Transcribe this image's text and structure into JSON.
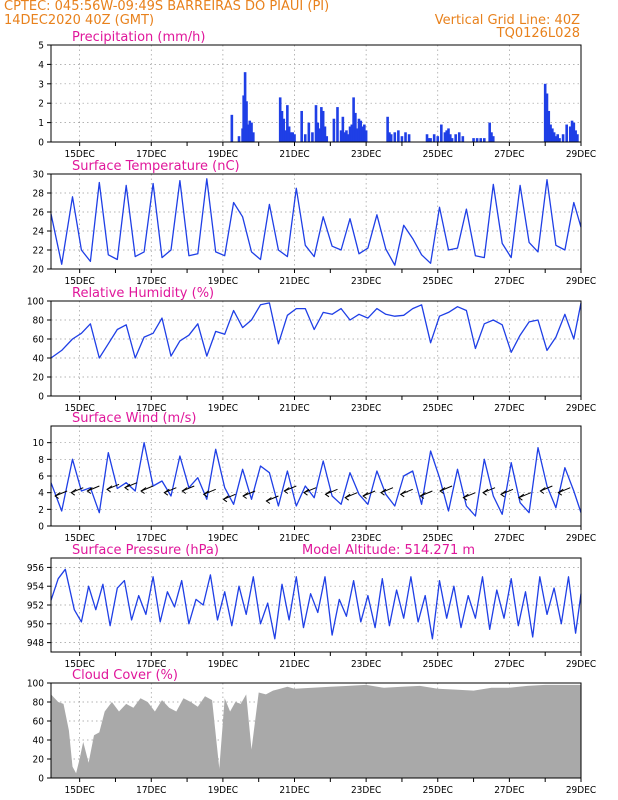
{
  "header": {
    "line1": "CPTEC:   045:56W-09:49S  BARREIRAS DO PIAUI (PI)",
    "line2": "14DEC2020 40Z (GMT)",
    "grid_note": "Vertical Grid Line: 40Z",
    "product_code": "TQ0126L028"
  },
  "colors": {
    "header": "#e8811c",
    "panel_title": "#e0179b",
    "series": "#1f3fe6",
    "cloud": "#a9a9a9",
    "wind_arrow": "#000000"
  },
  "chart_data": [
    {
      "id": "precip",
      "type": "bar",
      "title": "Precipitation (mm/h)",
      "ylim": [
        0,
        5
      ],
      "yticks": [
        0,
        1,
        2,
        3,
        4,
        5
      ],
      "xtick_labels": [
        "15DEC",
        "17DEC",
        "19DEC",
        "21DEC",
        "23DEC",
        "25DEC",
        "27DEC",
        "29DEC"
      ],
      "xrange_days": [
        14.2,
        29.0
      ],
      "x": [
        19.25,
        19.45,
        19.55,
        19.58,
        19.62,
        19.66,
        19.7,
        19.75,
        19.8,
        19.85,
        20.6,
        20.65,
        20.7,
        20.75,
        20.8,
        20.85,
        20.9,
        20.95,
        21.0,
        21.2,
        21.3,
        21.4,
        21.5,
        21.6,
        21.65,
        21.7,
        21.75,
        21.8,
        21.85,
        21.9,
        22.1,
        22.2,
        22.3,
        22.35,
        22.4,
        22.45,
        22.5,
        22.55,
        22.6,
        22.65,
        22.7,
        22.75,
        22.8,
        22.85,
        22.9,
        22.95,
        23.0,
        23.6,
        23.65,
        23.7,
        23.8,
        23.9,
        24.0,
        24.1,
        24.2,
        24.7,
        24.75,
        24.8,
        24.9,
        25.0,
        25.1,
        25.2,
        25.25,
        25.3,
        25.35,
        25.4,
        25.5,
        25.6,
        25.7,
        26.0,
        26.1,
        26.2,
        26.3,
        26.45,
        26.5,
        26.55,
        28.0,
        28.05,
        28.1,
        28.15,
        28.2,
        28.25,
        28.3,
        28.35,
        28.4,
        28.5,
        28.6,
        28.7,
        28.75,
        28.8,
        28.85,
        28.9
      ],
      "values": [
        1.4,
        0.3,
        0.7,
        2.4,
        3.6,
        2.1,
        0.9,
        1.1,
        1.0,
        0.5,
        2.3,
        1.6,
        1.2,
        0.6,
        1.9,
        0.8,
        0.5,
        0.5,
        0.4,
        1.6,
        0.4,
        1.0,
        0.5,
        1.9,
        1.0,
        0.7,
        1.8,
        1.6,
        0.8,
        0.3,
        1.2,
        1.8,
        0.6,
        1.3,
        0.5,
        0.6,
        0.4,
        0.8,
        0.9,
        2.3,
        1.5,
        0.7,
        1.2,
        1.1,
        0.8,
        0.9,
        0.6,
        1.3,
        0.5,
        0.4,
        0.5,
        0.6,
        0.3,
        0.5,
        0.4,
        0.4,
        0.2,
        0.2,
        0.4,
        0.3,
        0.9,
        0.5,
        0.6,
        0.7,
        0.4,
        0.2,
        0.4,
        0.5,
        0.3,
        0.2,
        0.2,
        0.2,
        0.2,
        1.0,
        0.5,
        0.3,
        3.0,
        2.5,
        1.6,
        0.9,
        0.7,
        0.5,
        0.3,
        0.4,
        0.2,
        0.4,
        0.9,
        0.8,
        1.1,
        1.0,
        0.6,
        0.4
      ]
    },
    {
      "id": "temp",
      "type": "line",
      "title": "Surface Temperature (nC)",
      "ylim": [
        20,
        30
      ],
      "yticks": [
        20,
        22,
        24,
        26,
        28,
        30
      ],
      "xtick_labels": [
        "15DEC",
        "17DEC",
        "19DEC",
        "21DEC",
        "23DEC",
        "25DEC",
        "27DEC",
        "29DEC"
      ],
      "xrange_days": [
        14.2,
        29.0
      ],
      "x": [
        14.2,
        14.5,
        14.8,
        15.05,
        15.3,
        15.55,
        15.8,
        16.05,
        16.3,
        16.55,
        16.8,
        17.05,
        17.3,
        17.55,
        17.8,
        18.05,
        18.3,
        18.55,
        18.8,
        19.05,
        19.3,
        19.55,
        19.8,
        20.05,
        20.3,
        20.55,
        20.8,
        21.05,
        21.3,
        21.55,
        21.8,
        22.05,
        22.3,
        22.55,
        22.8,
        23.05,
        23.3,
        23.55,
        23.8,
        24.05,
        24.3,
        24.55,
        24.8,
        25.05,
        25.3,
        25.55,
        25.8,
        26.05,
        26.3,
        26.55,
        26.8,
        27.05,
        27.3,
        27.55,
        27.8,
        28.05,
        28.3,
        28.55,
        28.8,
        29.0
      ],
      "values": [
        25.8,
        20.5,
        27.6,
        22.0,
        20.8,
        29.1,
        21.5,
        21.0,
        28.8,
        21.3,
        21.8,
        29.0,
        21.2,
        22.0,
        29.3,
        21.4,
        21.6,
        29.5,
        21.8,
        21.4,
        27.0,
        25.5,
        21.8,
        21.0,
        26.8,
        22.0,
        21.3,
        28.5,
        22.5,
        21.3,
        25.5,
        22.4,
        22.0,
        25.3,
        21.6,
        22.2,
        25.7,
        22.1,
        20.4,
        24.6,
        23.2,
        21.5,
        20.6,
        26.5,
        22.0,
        22.2,
        26.3,
        21.4,
        21.2,
        28.9,
        22.7,
        21.2,
        28.8,
        22.8,
        21.8,
        29.4,
        22.5,
        22.0,
        27.0,
        24.4
      ]
    },
    {
      "id": "rh",
      "type": "line",
      "title": "Relative Humidity (%)",
      "ylim": [
        0,
        100
      ],
      "yticks": [
        0,
        20,
        40,
        60,
        80,
        100
      ],
      "xtick_labels": [
        "15DEC",
        "17DEC",
        "19DEC",
        "21DEC",
        "23DEC",
        "25DEC",
        "27DEC",
        "29DEC"
      ],
      "xrange_days": [
        14.2,
        29.0
      ],
      "x": [
        14.2,
        14.5,
        14.8,
        15.05,
        15.3,
        15.55,
        15.8,
        16.05,
        16.3,
        16.55,
        16.8,
        17.05,
        17.3,
        17.55,
        17.8,
        18.05,
        18.3,
        18.55,
        18.8,
        19.05,
        19.3,
        19.55,
        19.8,
        20.05,
        20.3,
        20.55,
        20.8,
        21.05,
        21.3,
        21.55,
        21.8,
        22.05,
        22.3,
        22.55,
        22.8,
        23.05,
        23.3,
        23.55,
        23.8,
        24.05,
        24.3,
        24.55,
        24.8,
        25.05,
        25.3,
        25.55,
        25.8,
        26.05,
        26.3,
        26.55,
        26.8,
        27.05,
        27.3,
        27.55,
        27.8,
        28.05,
        28.3,
        28.55,
        28.8,
        29.0
      ],
      "values": [
        40,
        48,
        60,
        66,
        76,
        40,
        55,
        70,
        75,
        40,
        62,
        66,
        82,
        42,
        58,
        64,
        76,
        42,
        68,
        65,
        90,
        72,
        80,
        96,
        98,
        55,
        85,
        92,
        92,
        70,
        88,
        86,
        92,
        80,
        86,
        82,
        92,
        86,
        84,
        85,
        92,
        96,
        56,
        84,
        88,
        94,
        90,
        50,
        76,
        80,
        75,
        46,
        64,
        78,
        80,
        48,
        62,
        86,
        60,
        98
      ]
    },
    {
      "id": "wind",
      "type": "line",
      "title": "Surface Wind (m/s)",
      "ylim": [
        0,
        12
      ],
      "yticks": [
        0,
        2,
        4,
        6,
        8,
        10
      ],
      "xtick_labels": [
        "15DEC",
        "17DEC",
        "19DEC",
        "21DEC",
        "23DEC",
        "25DEC",
        "27DEC",
        "29DEC"
      ],
      "xrange_days": [
        14.2,
        29.0
      ],
      "x": [
        14.2,
        14.5,
        14.8,
        15.05,
        15.3,
        15.55,
        15.8,
        16.05,
        16.3,
        16.55,
        16.8,
        17.05,
        17.3,
        17.55,
        17.8,
        18.05,
        18.3,
        18.55,
        18.8,
        19.05,
        19.3,
        19.55,
        19.8,
        20.05,
        20.3,
        20.55,
        20.8,
        21.05,
        21.3,
        21.55,
        21.8,
        22.05,
        22.3,
        22.55,
        22.8,
        23.05,
        23.3,
        23.55,
        23.8,
        24.05,
        24.3,
        24.55,
        24.8,
        25.05,
        25.3,
        25.55,
        25.8,
        26.05,
        26.3,
        26.55,
        26.8,
        27.05,
        27.3,
        27.55,
        27.8,
        28.05,
        28.3,
        28.55,
        28.8,
        29.0
      ],
      "values": [
        5.2,
        1.8,
        8.0,
        4.2,
        4.6,
        1.6,
        8.8,
        4.5,
        5.2,
        4.2,
        10.0,
        4.8,
        5.4,
        3.6,
        8.4,
        4.6,
        5.8,
        3.2,
        9.2,
        4.6,
        2.6,
        6.8,
        3.2,
        7.2,
        6.4,
        2.4,
        6.6,
        2.4,
        4.8,
        3.4,
        7.8,
        3.6,
        2.6,
        6.4,
        3.8,
        2.6,
        6.6,
        3.8,
        2.4,
        6.0,
        6.6,
        2.6,
        9.0,
        5.8,
        1.8,
        6.8,
        2.4,
        1.2,
        8.0,
        3.6,
        1.4,
        7.6,
        2.8,
        1.6,
        9.4,
        4.8,
        2.2,
        7.0,
        4.2,
        1.6
      ],
      "arrows": [
        {
          "x": 14.65,
          "y": 4.2
        },
        {
          "x": 15.1,
          "y": 4.6
        },
        {
          "x": 15.55,
          "y": 4.8
        },
        {
          "x": 16.1,
          "y": 5.0
        },
        {
          "x": 16.6,
          "y": 5.2
        },
        {
          "x": 17.05,
          "y": 4.8
        },
        {
          "x": 17.7,
          "y": 4.6
        },
        {
          "x": 18.2,
          "y": 4.8
        },
        {
          "x": 18.8,
          "y": 4.4
        },
        {
          "x": 19.35,
          "y": 3.8
        },
        {
          "x": 19.9,
          "y": 4.2
        },
        {
          "x": 20.55,
          "y": 3.6
        },
        {
          "x": 21.05,
          "y": 4.8
        },
        {
          "x": 21.6,
          "y": 4.6
        },
        {
          "x": 22.2,
          "y": 4.4
        },
        {
          "x": 22.75,
          "y": 4.0
        },
        {
          "x": 23.25,
          "y": 4.2
        },
        {
          "x": 23.75,
          "y": 4.6
        },
        {
          "x": 24.3,
          "y": 4.4
        },
        {
          "x": 24.85,
          "y": 4.2
        },
        {
          "x": 25.4,
          "y": 4.8
        },
        {
          "x": 26.05,
          "y": 4.0
        },
        {
          "x": 26.6,
          "y": 4.6
        },
        {
          "x": 27.1,
          "y": 4.4
        },
        {
          "x": 27.6,
          "y": 4.0
        },
        {
          "x": 28.2,
          "y": 4.8
        },
        {
          "x": 28.7,
          "y": 4.6
        }
      ]
    },
    {
      "id": "pres",
      "type": "line",
      "title": "Surface Pressure (hPa)",
      "annotation": "Model Altitude: 514.271 m",
      "ylim": [
        947,
        957
      ],
      "yticks": [
        948,
        950,
        952,
        954,
        956
      ],
      "xtick_labels": [
        "15DEC",
        "17DEC",
        "19DEC",
        "21DEC",
        "23DEC",
        "25DEC",
        "27DEC",
        "29DEC"
      ],
      "xrange_days": [
        14.2,
        29.0
      ],
      "x": [
        14.2,
        14.4,
        14.6,
        14.85,
        15.05,
        15.25,
        15.45,
        15.65,
        15.85,
        16.05,
        16.25,
        16.45,
        16.65,
        16.85,
        17.05,
        17.25,
        17.45,
        17.65,
        17.85,
        18.05,
        18.25,
        18.45,
        18.65,
        18.85,
        19.05,
        19.25,
        19.45,
        19.65,
        19.85,
        20.05,
        20.25,
        20.45,
        20.65,
        20.85,
        21.05,
        21.25,
        21.45,
        21.65,
        21.85,
        22.05,
        22.25,
        22.45,
        22.65,
        22.85,
        23.05,
        23.25,
        23.45,
        23.65,
        23.85,
        24.05,
        24.25,
        24.45,
        24.65,
        24.85,
        25.05,
        25.25,
        25.45,
        25.65,
        25.85,
        26.05,
        26.25,
        26.45,
        26.65,
        26.85,
        27.05,
        27.25,
        27.45,
        27.65,
        27.85,
        28.05,
        28.25,
        28.45,
        28.65,
        28.85,
        29.0
      ],
      "values": [
        952.5,
        954.8,
        955.8,
        951.5,
        950.2,
        954.0,
        951.5,
        954.2,
        949.8,
        953.8,
        954.6,
        950.4,
        953.0,
        951.0,
        955.0,
        950.2,
        953.4,
        951.8,
        954.6,
        950.0,
        952.6,
        952.0,
        955.2,
        950.4,
        953.4,
        949.8,
        954.0,
        951.0,
        955.0,
        950.0,
        952.2,
        948.4,
        954.2,
        950.4,
        955.0,
        949.6,
        953.2,
        951.2,
        955.0,
        948.8,
        952.6,
        950.8,
        954.6,
        950.2,
        953.0,
        949.6,
        954.8,
        949.8,
        953.6,
        950.6,
        955.0,
        950.2,
        953.0,
        948.4,
        954.6,
        950.6,
        954.0,
        949.6,
        953.0,
        950.6,
        955.0,
        949.4,
        953.6,
        950.6,
        954.8,
        949.8,
        953.4,
        948.6,
        955.0,
        951.0,
        953.8,
        950.0,
        955.0,
        949.0,
        953.2
      ]
    },
    {
      "id": "cloud",
      "type": "area",
      "title": "Cloud Cover (%)",
      "ylim": [
        0,
        100
      ],
      "yticks": [
        0,
        20,
        40,
        60,
        80,
        100
      ],
      "xtick_labels": [
        "15DEC",
        "17DEC",
        "19DEC",
        "21DEC",
        "23DEC",
        "25DEC",
        "27DEC",
        "29DEC"
      ],
      "xrange_days": [
        14.2,
        29.0
      ],
      "x": [
        14.2,
        14.4,
        14.55,
        14.7,
        14.8,
        14.9,
        15.0,
        15.1,
        15.25,
        15.4,
        15.55,
        15.7,
        15.9,
        16.1,
        16.3,
        16.5,
        16.7,
        16.9,
        17.1,
        17.3,
        17.5,
        17.7,
        17.9,
        18.1,
        18.3,
        18.5,
        18.7,
        18.9,
        19.05,
        19.2,
        19.35,
        19.5,
        19.65,
        19.8,
        20.0,
        20.2,
        20.4,
        20.6,
        20.8,
        21.0,
        21.5,
        22.0,
        22.5,
        23.0,
        23.5,
        24.0,
        24.5,
        25.0,
        25.5,
        26.0,
        26.5,
        27.0,
        27.5,
        28.0,
        28.5,
        29.0
      ],
      "values": [
        88,
        80,
        78,
        50,
        12,
        5,
        20,
        38,
        16,
        45,
        48,
        70,
        80,
        70,
        78,
        74,
        84,
        80,
        70,
        82,
        74,
        70,
        84,
        80,
        75,
        86,
        82,
        10,
        84,
        70,
        80,
        78,
        88,
        30,
        90,
        88,
        92,
        94,
        96,
        94,
        95,
        96,
        97,
        98,
        95,
        96,
        97,
        94,
        93,
        92,
        95,
        95,
        97,
        98,
        98,
        98
      ]
    }
  ]
}
